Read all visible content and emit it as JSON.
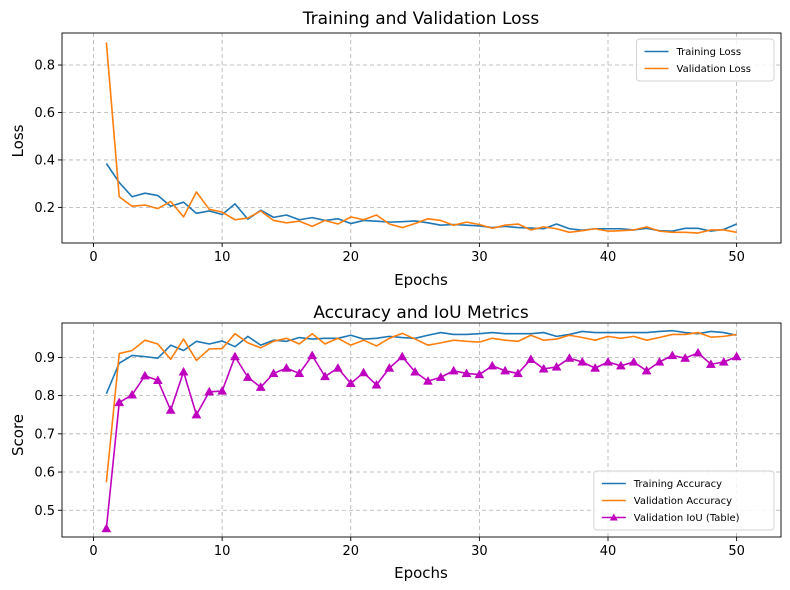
{
  "chart_data": [
    {
      "type": "line",
      "title": "Training and Validation Loss",
      "xlabel": "Epochs",
      "ylabel": "Loss",
      "xlim": [
        -2.45,
        53.45
      ],
      "ylim": [
        0.05,
        0.935
      ],
      "xticks": [
        0,
        10,
        20,
        30,
        40,
        50
      ],
      "yticks": [
        0.2,
        0.4,
        0.6,
        0.8
      ],
      "ytick_labels": [
        "0.2",
        "0.4",
        "0.6",
        "0.8"
      ],
      "grid": true,
      "legend_position": "top-right",
      "x": [
        1,
        2,
        3,
        4,
        5,
        6,
        7,
        8,
        9,
        10,
        11,
        12,
        13,
        14,
        15,
        16,
        17,
        18,
        19,
        20,
        21,
        22,
        23,
        24,
        25,
        26,
        27,
        28,
        29,
        30,
        31,
        32,
        33,
        34,
        35,
        36,
        37,
        38,
        39,
        40,
        41,
        42,
        43,
        44,
        45,
        46,
        47,
        48,
        49,
        50
      ],
      "series": [
        {
          "name": "Training Loss",
          "color": "#1f77b4",
          "marker": "none",
          "values": [
            0.385,
            0.305,
            0.245,
            0.26,
            0.25,
            0.205,
            0.222,
            0.175,
            0.185,
            0.17,
            0.215,
            0.15,
            0.188,
            0.158,
            0.168,
            0.148,
            0.157,
            0.145,
            0.152,
            0.132,
            0.145,
            0.142,
            0.138,
            0.14,
            0.143,
            0.135,
            0.125,
            0.128,
            0.125,
            0.122,
            0.115,
            0.12,
            0.115,
            0.113,
            0.11,
            0.13,
            0.11,
            0.104,
            0.11,
            0.11,
            0.11,
            0.105,
            0.112,
            0.102,
            0.1,
            0.112,
            0.112,
            0.1,
            0.107,
            0.13
          ]
        },
        {
          "name": "Validation Loss",
          "color": "#ff7f0e",
          "marker": "none",
          "values": [
            0.895,
            0.245,
            0.205,
            0.21,
            0.195,
            0.225,
            0.16,
            0.265,
            0.192,
            0.18,
            0.148,
            0.155,
            0.185,
            0.145,
            0.135,
            0.142,
            0.12,
            0.145,
            0.13,
            0.16,
            0.148,
            0.168,
            0.13,
            0.115,
            0.132,
            0.152,
            0.145,
            0.125,
            0.138,
            0.128,
            0.112,
            0.125,
            0.13,
            0.105,
            0.118,
            0.11,
            0.095,
            0.102,
            0.11,
            0.1,
            0.102,
            0.105,
            0.118,
            0.1,
            0.095,
            0.095,
            0.092,
            0.105,
            0.105,
            0.095
          ]
        }
      ]
    },
    {
      "type": "line",
      "title": "Accuracy and IoU Metrics",
      "xlabel": "Epochs",
      "ylabel": "Score",
      "xlim": [
        -2.45,
        53.45
      ],
      "ylim": [
        0.43,
        0.99
      ],
      "xticks": [
        0,
        10,
        20,
        30,
        40,
        50
      ],
      "yticks": [
        0.5,
        0.6,
        0.7,
        0.8,
        0.9
      ],
      "ytick_labels": [
        "0.5",
        "0.6",
        "0.7",
        "0.8",
        "0.9"
      ],
      "grid": true,
      "legend_position": "bottom-right",
      "x": [
        1,
        2,
        3,
        4,
        5,
        6,
        7,
        8,
        9,
        10,
        11,
        12,
        13,
        14,
        15,
        16,
        17,
        18,
        19,
        20,
        21,
        22,
        23,
        24,
        25,
        26,
        27,
        28,
        29,
        30,
        31,
        32,
        33,
        34,
        35,
        36,
        37,
        38,
        39,
        40,
        41,
        42,
        43,
        44,
        45,
        46,
        47,
        48,
        49,
        50
      ],
      "series": [
        {
          "name": "Training Accuracy",
          "color": "#1f77b4",
          "marker": "none",
          "values": [
            0.805,
            0.885,
            0.905,
            0.902,
            0.898,
            0.932,
            0.918,
            0.942,
            0.935,
            0.943,
            0.928,
            0.955,
            0.932,
            0.945,
            0.942,
            0.952,
            0.948,
            0.95,
            0.95,
            0.958,
            0.948,
            0.95,
            0.955,
            0.952,
            0.95,
            0.958,
            0.965,
            0.96,
            0.96,
            0.962,
            0.965,
            0.962,
            0.962,
            0.962,
            0.965,
            0.955,
            0.96,
            0.968,
            0.965,
            0.965,
            0.965,
            0.965,
            0.965,
            0.968,
            0.97,
            0.965,
            0.962,
            0.968,
            0.965,
            0.958
          ]
        },
        {
          "name": "Validation Accuracy",
          "color": "#ff7f0e",
          "marker": "none",
          "values": [
            0.573,
            0.91,
            0.918,
            0.945,
            0.935,
            0.895,
            0.948,
            0.892,
            0.922,
            0.923,
            0.962,
            0.938,
            0.925,
            0.942,
            0.95,
            0.935,
            0.962,
            0.935,
            0.95,
            0.932,
            0.945,
            0.93,
            0.95,
            0.963,
            0.948,
            0.932,
            0.938,
            0.945,
            0.942,
            0.94,
            0.95,
            0.945,
            0.942,
            0.958,
            0.945,
            0.948,
            0.958,
            0.952,
            0.945,
            0.955,
            0.95,
            0.955,
            0.945,
            0.952,
            0.96,
            0.96,
            0.965,
            0.953,
            0.955,
            0.96
          ]
        },
        {
          "name": "Validation IoU (Table)",
          "color": "#bf00bf",
          "marker": "triangle",
          "values": [
            0.452,
            0.782,
            0.802,
            0.852,
            0.84,
            0.762,
            0.862,
            0.75,
            0.81,
            0.812,
            0.902,
            0.848,
            0.822,
            0.858,
            0.872,
            0.858,
            0.905,
            0.85,
            0.872,
            0.832,
            0.86,
            0.828,
            0.872,
            0.902,
            0.862,
            0.838,
            0.848,
            0.865,
            0.858,
            0.855,
            0.878,
            0.865,
            0.858,
            0.895,
            0.87,
            0.875,
            0.898,
            0.888,
            0.872,
            0.888,
            0.878,
            0.888,
            0.865,
            0.888,
            0.905,
            0.898,
            0.912,
            0.882,
            0.888,
            0.902
          ]
        }
      ]
    }
  ]
}
